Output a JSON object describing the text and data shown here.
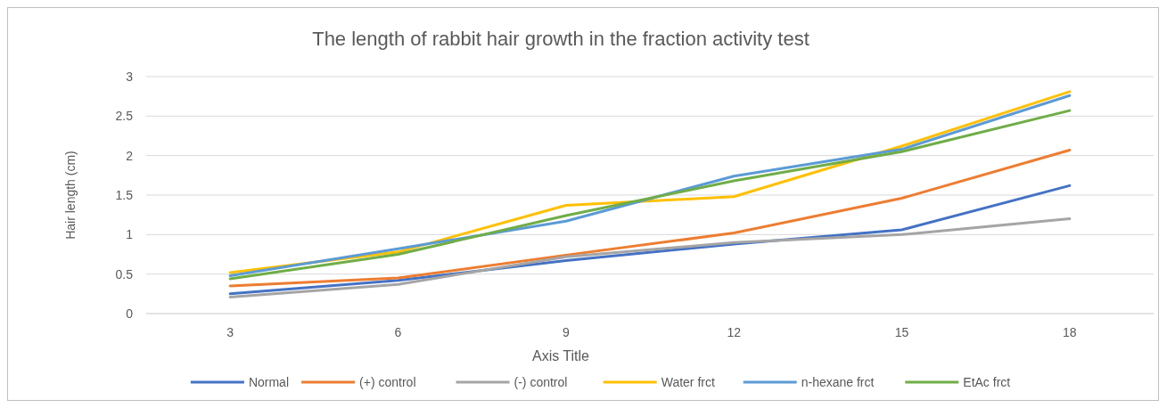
{
  "chart_data": {
    "type": "line",
    "title": "The length of rabbit hair growth in the fraction activity test",
    "xlabel": "Axis Title",
    "ylabel": "Hair length (cm)",
    "categories": [
      "3",
      "6",
      "9",
      "12",
      "15",
      "18"
    ],
    "ylim": [
      0,
      3
    ],
    "yticks": [
      0,
      0.5,
      1,
      1.5,
      2,
      2.5,
      3
    ],
    "grid": "y",
    "legend": "bottom",
    "marker": "none",
    "line_style": "solid",
    "series": [
      {
        "name": "Normal",
        "color": "#4472c4",
        "values": [
          0.25,
          0.42,
          0.67,
          0.88,
          1.06,
          1.62
        ]
      },
      {
        "name": "(+)  control",
        "color": "#ed7d31",
        "values": [
          0.35,
          0.45,
          0.74,
          1.02,
          1.46,
          2.07
        ]
      },
      {
        "name": "(-) control",
        "color": "#a5a5a5",
        "values": [
          0.21,
          0.37,
          0.72,
          0.9,
          1.0,
          1.2
        ]
      },
      {
        "name": "Water frct",
        "color": "#ffc000",
        "values": [
          0.52,
          0.78,
          1.37,
          1.48,
          2.12,
          2.81
        ]
      },
      {
        "name": "n-hexane frct",
        "color": "#5b9bd5",
        "values": [
          0.48,
          0.82,
          1.17,
          1.74,
          2.08,
          2.76
        ]
      },
      {
        "name": "EtAc frct",
        "color": "#70ad47",
        "values": [
          0.44,
          0.75,
          1.24,
          1.68,
          2.05,
          2.57
        ]
      }
    ]
  }
}
